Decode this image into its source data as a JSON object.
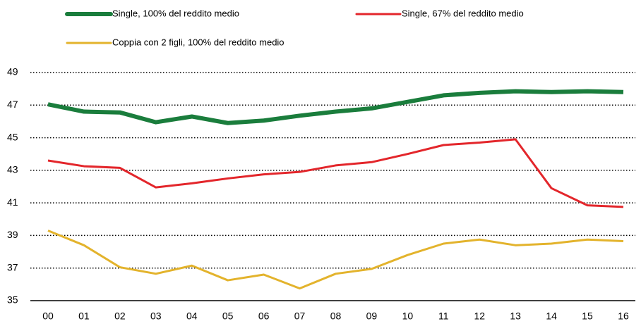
{
  "chart_data": {
    "type": "line",
    "categories": [
      "00",
      "01",
      "02",
      "03",
      "04",
      "05",
      "06",
      "07",
      "08",
      "09",
      "10",
      "11",
      "12",
      "13",
      "14",
      "15",
      "16"
    ],
    "series": [
      {
        "name": "Single, 100% del reddito medio",
        "color": "#1a7d3c",
        "values": [
          47.05,
          46.6,
          46.55,
          45.95,
          46.3,
          45.9,
          46.05,
          46.35,
          46.6,
          46.8,
          47.2,
          47.6,
          47.75,
          47.85,
          47.8,
          47.85,
          47.8
        ]
      },
      {
        "name": "Single, 67% del reddito medio",
        "color": "#e3262b",
        "values": [
          43.6,
          43.25,
          43.15,
          41.95,
          42.2,
          42.5,
          42.75,
          42.9,
          43.3,
          43.5,
          44.0,
          44.55,
          44.7,
          44.9,
          41.9,
          40.85,
          40.75
        ]
      },
      {
        "name": "Coppia con 2 figli, 100% del reddito medio",
        "color": "#e3b32c",
        "values": [
          39.3,
          38.4,
          37.05,
          36.65,
          37.15,
          36.25,
          36.6,
          35.75,
          36.65,
          36.95,
          37.8,
          38.5,
          38.75,
          38.4,
          38.5,
          38.75,
          38.65
        ]
      }
    ],
    "ylim": [
      35,
      49
    ],
    "yticks": [
      35,
      37,
      39,
      41,
      43,
      45,
      47,
      49
    ],
    "grid": true,
    "legend": "top"
  }
}
